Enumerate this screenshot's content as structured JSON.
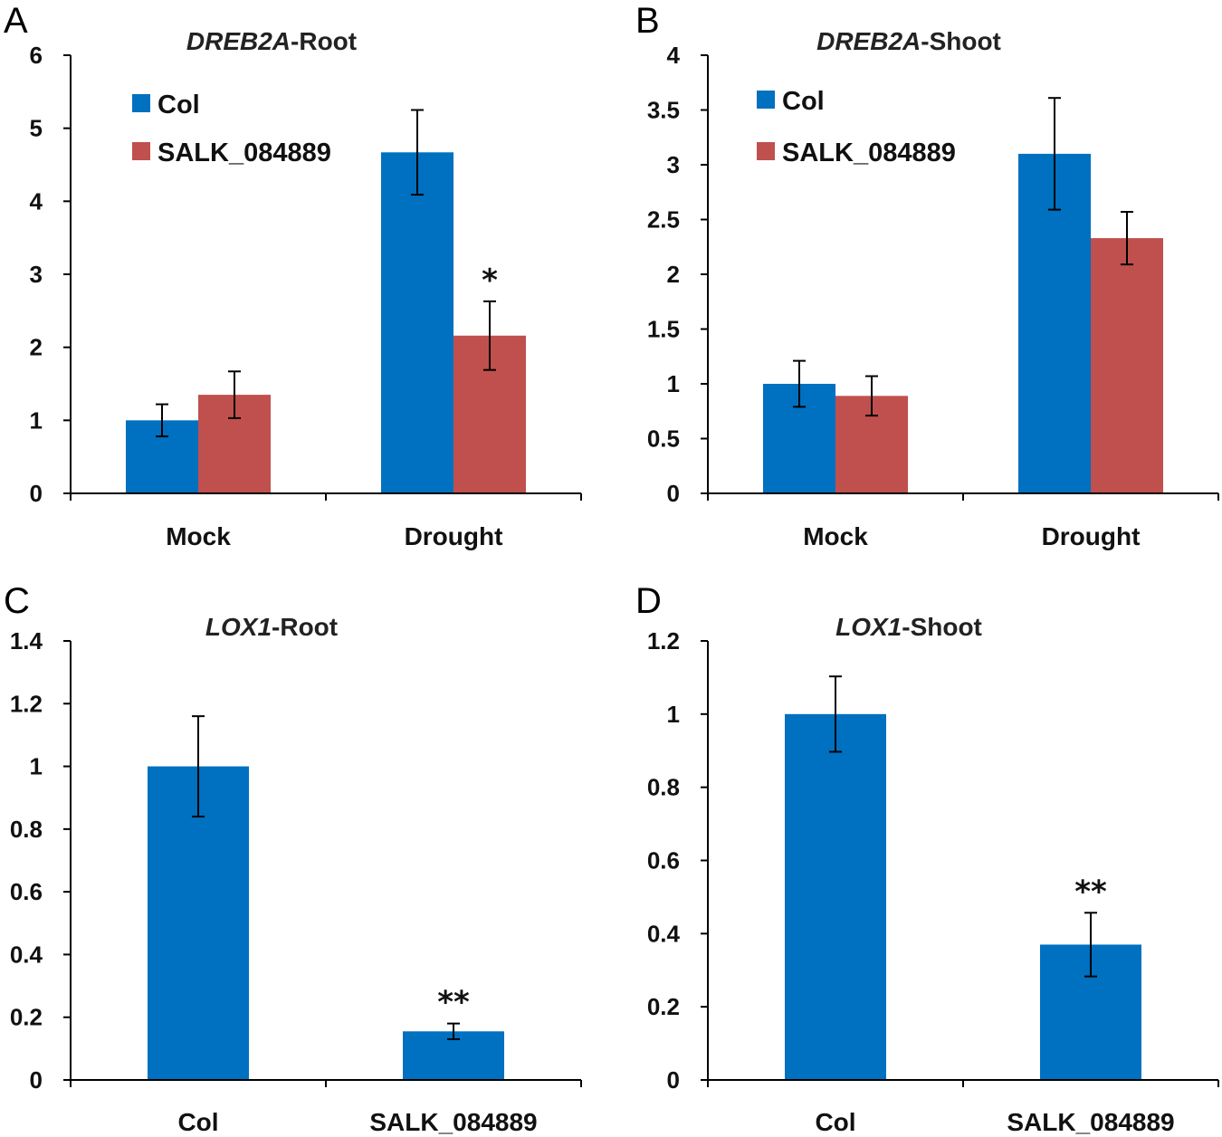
{
  "colors": {
    "col": "#0070c0",
    "salk": "#c0504d",
    "axis": "#000000"
  },
  "chart_data": [
    {
      "panel": "A",
      "type": "bar",
      "title": {
        "gene": "DREB2A",
        "suffix": "-Root"
      },
      "categories": [
        "Mock",
        "Drought"
      ],
      "series": [
        {
          "name": "Col",
          "color": "#0070c0",
          "values": [
            1.0,
            4.67
          ],
          "errors": [
            0.22,
            0.58
          ]
        },
        {
          "name": "SALK_084889",
          "color": "#c0504d",
          "values": [
            1.35,
            2.16
          ],
          "errors": [
            0.32,
            0.47
          ]
        }
      ],
      "ylim": [
        0,
        6
      ],
      "yticks": [
        "0",
        "1",
        "2",
        "3",
        "4",
        "5",
        "6"
      ],
      "ytick_values": [
        0,
        1,
        2,
        3,
        4,
        5,
        6
      ],
      "legend": "top-left",
      "annotations": [
        {
          "series": 1,
          "category": 1,
          "text": "*"
        }
      ]
    },
    {
      "panel": "B",
      "type": "bar",
      "title": {
        "gene": "DREB2A",
        "suffix": "-Shoot"
      },
      "categories": [
        "Mock",
        "Drought"
      ],
      "series": [
        {
          "name": "Col",
          "color": "#0070c0",
          "values": [
            1.0,
            3.1
          ],
          "errors": [
            0.21,
            0.51
          ]
        },
        {
          "name": "SALK_084889",
          "color": "#c0504d",
          "values": [
            0.89,
            2.33
          ],
          "errors": [
            0.18,
            0.24
          ]
        }
      ],
      "ylim": [
        0,
        4
      ],
      "yticks": [
        "0",
        "0.5",
        "1",
        "1.5",
        "2",
        "2.5",
        "3",
        "3.5",
        "4"
      ],
      "ytick_values": [
        0,
        0.5,
        1,
        1.5,
        2,
        2.5,
        3,
        3.5,
        4
      ],
      "legend": "top-left",
      "annotations": []
    },
    {
      "panel": "C",
      "type": "bar",
      "title": {
        "gene": "LOX1",
        "suffix": "-Root"
      },
      "categories": [
        "Col",
        "SALK_084889"
      ],
      "series": [
        {
          "color": "#0070c0",
          "values": [
            1.0,
            0.155
          ],
          "errors": [
            0.16,
            0.025
          ]
        }
      ],
      "ylim": [
        0,
        1.4
      ],
      "yticks": [
        "0",
        "0.2",
        "0.4",
        "0.6",
        "0.8",
        "1",
        "1.2",
        "1.4"
      ],
      "ytick_values": [
        0,
        0.2,
        0.4,
        0.6,
        0.8,
        1.0,
        1.2,
        1.4
      ],
      "legend": "none",
      "annotations": [
        {
          "series": 0,
          "category": 1,
          "text": "**"
        }
      ]
    },
    {
      "panel": "D",
      "type": "bar",
      "title": {
        "gene": "LOX1",
        "suffix": "-Shoot"
      },
      "categories": [
        "Col",
        "SALK_084889"
      ],
      "series": [
        {
          "color": "#0070c0",
          "values": [
            1.0,
            0.37
          ],
          "errors": [
            0.103,
            0.087
          ]
        }
      ],
      "ylim": [
        0,
        1.2
      ],
      "yticks": [
        "0",
        "0.2",
        "0.4",
        "0.6",
        "0.8",
        "1",
        "1.2"
      ],
      "ytick_values": [
        0,
        0.2,
        0.4,
        0.6,
        0.8,
        1.0,
        1.2
      ],
      "legend": "none",
      "annotations": [
        {
          "series": 0,
          "category": 1,
          "text": "**"
        }
      ]
    }
  ]
}
